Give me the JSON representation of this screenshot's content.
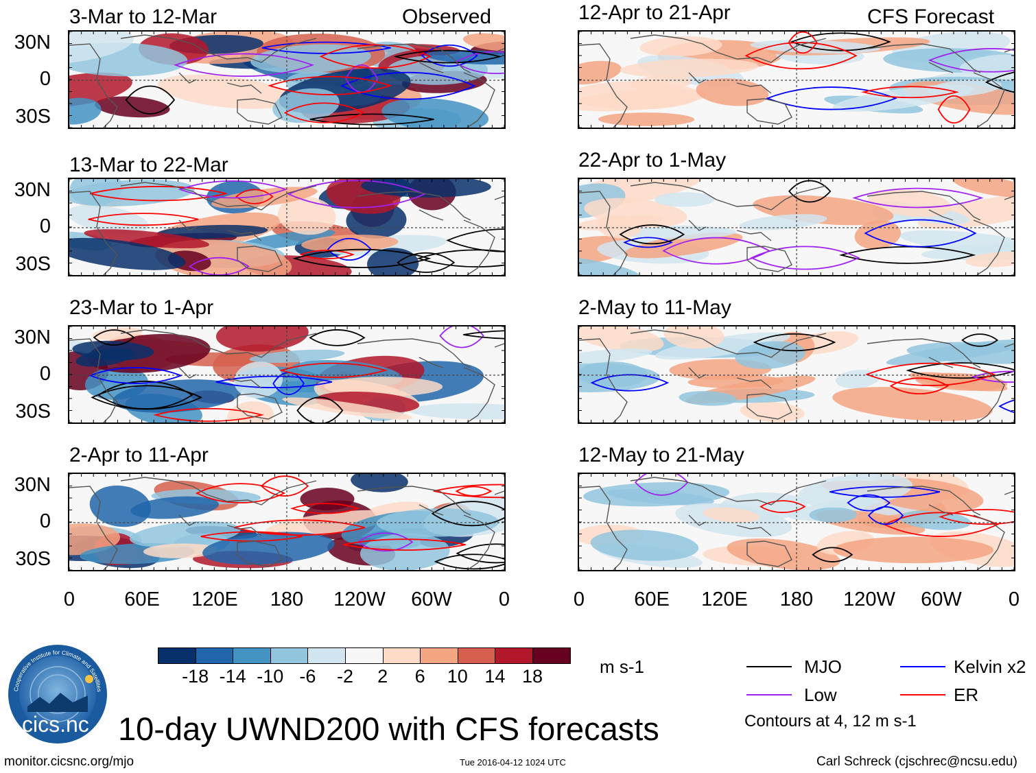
{
  "header": {
    "observed_label": "Observed",
    "forecast_label": "CFS Forecast"
  },
  "panels_left": [
    {
      "title": "3-Mar to 12-Mar"
    },
    {
      "title": "13-Mar to 22-Mar"
    },
    {
      "title": "23-Mar to 1-Apr"
    },
    {
      "title": "2-Apr to 11-Apr"
    }
  ],
  "panels_right": [
    {
      "title": "12-Apr to 21-Apr"
    },
    {
      "title": "22-Apr to 1-May"
    },
    {
      "title": "2-May to 11-May"
    },
    {
      "title": "12-May to 21-May"
    }
  ],
  "lat_labels": [
    "30N",
    "0",
    "30S"
  ],
  "lon_labels": [
    "0",
    "60E",
    "120E",
    "180",
    "120W",
    "60W",
    "0"
  ],
  "colorbar": {
    "colors": [
      "#08306b",
      "#2166ac",
      "#4393c3",
      "#92c5de",
      "#d1e5f0",
      "#f7f7f7",
      "#fddbc7",
      "#f4a582",
      "#d6604d",
      "#b2182b",
      "#67001f"
    ],
    "labels": [
      "-18",
      "-14",
      "-10",
      "-6",
      "-2",
      "2",
      "6",
      "10",
      "14",
      "18"
    ],
    "units": "m s-1"
  },
  "legend": {
    "items": [
      {
        "label": "MJO",
        "color": "#000000"
      },
      {
        "label": "Kelvin x2",
        "color": "#0000ff"
      },
      {
        "label": "Low",
        "color": "#a020f0"
      },
      {
        "label": "ER",
        "color": "#ff0000"
      }
    ],
    "note": "Contours at 4, 12 m s-1"
  },
  "logo": {
    "text": "cics.nc",
    "ring_text": "Cooperative Institute for Climate and Satellites"
  },
  "footer": {
    "title": "10-day UWND200 with CFS forecasts",
    "url": "monitor.cicsnc.org/mjo",
    "timestamp": "Tue 2016-04-12 1024 UTC",
    "author": "Carl Schreck (cjschrec@ncsu.edu)"
  }
}
